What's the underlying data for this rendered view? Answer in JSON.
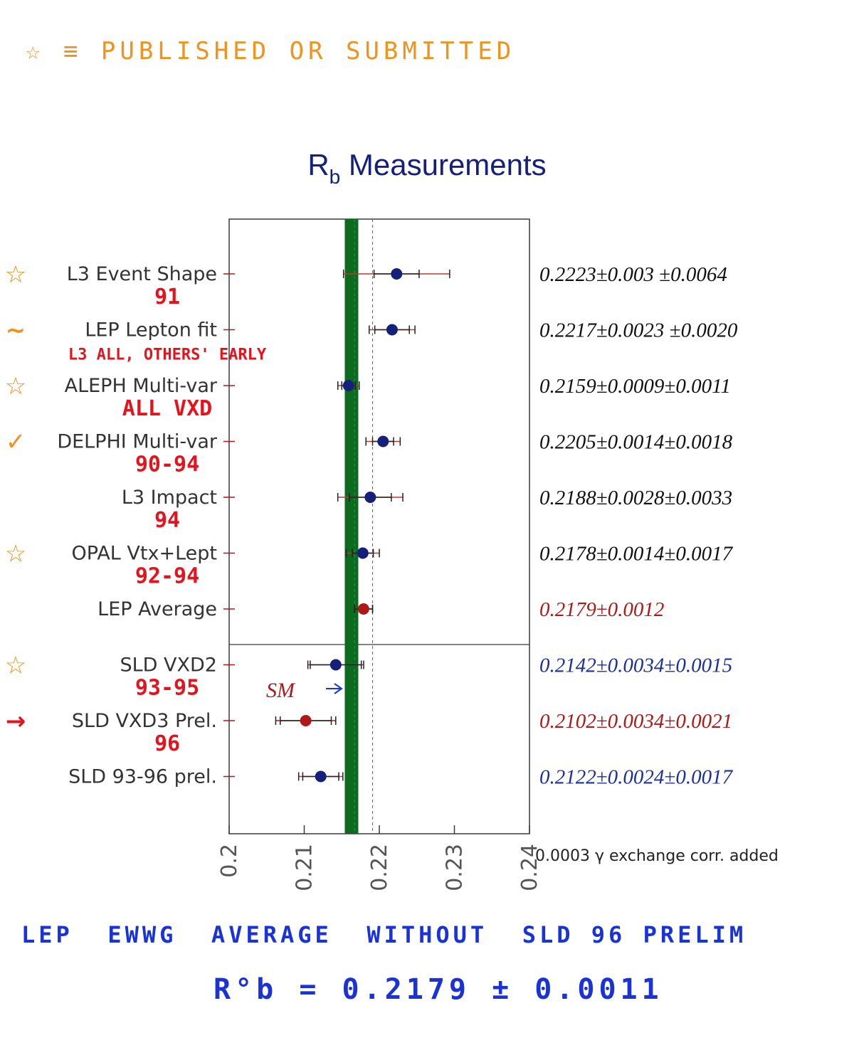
{
  "annotations": {
    "legend_note": "☆ ≡ PUBLISHED OR SUBMITTED",
    "sm_label": "SM",
    "bottom_line1": "LEP  EWWG  AVERAGE  WITHOUT  SLD 96 PRELIM",
    "bottom_line2": "R°b = 0.2179 ± 0.0011",
    "footnote": "0.0003 γ exchange corr. added"
  },
  "colors": {
    "title": "#14207a",
    "band": "#0d6b1f",
    "lep_point": "#14207a",
    "average_point": "#b01818",
    "sld_point": "#14207a",
    "handwriting_red": "#e6121c",
    "handwriting_orange": "#f0921c",
    "handwriting_blue": "#1a33d8"
  },
  "chart_data": {
    "type": "scatter",
    "title": "Rb Measurements",
    "title_main": "R",
    "title_sub": "b",
    "title_rest": " Measurements",
    "xlim": [
      0.2,
      0.24
    ],
    "xticks": [
      "0.2",
      "0.21",
      "0.22",
      "0.23",
      "0.24"
    ],
    "xtick_values": [
      0.2,
      0.21,
      0.22,
      0.23,
      0.24
    ],
    "band": {
      "value": 0.2163,
      "halfwidth": 0.0009,
      "label": "SM"
    },
    "grid": false,
    "legend": "none",
    "series": [
      {
        "label": "L3 Event Shape",
        "value": 0.2223,
        "stat": 0.003,
        "syst": 0.0064,
        "text": "0.2223±0.003  ±0.0064",
        "text_color": "#111111",
        "marker": "#14207a",
        "note": "91",
        "mark": "star"
      },
      {
        "label": "LEP Lepton fit",
        "value": 0.2217,
        "stat": 0.0023,
        "syst": 0.002,
        "text": "0.2217±0.0023 ±0.0020",
        "text_color": "#111111",
        "marker": "#14207a",
        "note": "L3 ALL, OTHERS' EARLY",
        "mark": "tilde"
      },
      {
        "label": "ALEPH Multi-var",
        "value": 0.2159,
        "stat": 0.0009,
        "syst": 0.0011,
        "text": "0.2159±0.0009±0.0011",
        "text_color": "#111111",
        "marker": "#14207a",
        "note": "ALL VXD",
        "mark": "star"
      },
      {
        "label": "DELPHI Multi-var",
        "value": 0.2205,
        "stat": 0.0014,
        "syst": 0.0018,
        "text": "0.2205±0.0014±0.0018",
        "text_color": "#111111",
        "marker": "#14207a",
        "note": "90-94",
        "mark": "check"
      },
      {
        "label": "L3 Impact",
        "value": 0.2188,
        "stat": 0.0028,
        "syst": 0.0033,
        "text": "0.2188±0.0028±0.0033",
        "text_color": "#111111",
        "marker": "#14207a",
        "note": "94",
        "mark": ""
      },
      {
        "label": "OPAL Vtx+Lept",
        "value": 0.2178,
        "stat": 0.0014,
        "syst": 0.0017,
        "text": "0.2178±0.0014±0.0017",
        "text_color": "#111111",
        "marker": "#14207a",
        "note": "92-94",
        "mark": "star"
      },
      {
        "label": "LEP Average",
        "value": 0.2179,
        "stat": 0.0012,
        "syst": 0,
        "text": "0.2179±0.0012",
        "text_color": "#b01818",
        "marker": "#b01818",
        "note": "",
        "mark": ""
      },
      {
        "label": "SLD VXD2",
        "value": 0.2142,
        "stat": 0.0034,
        "syst": 0.0015,
        "text": "0.2142±0.0034±0.0015",
        "text_color": "#1a2fa0",
        "marker": "#14207a",
        "note": "93-95",
        "mark": "star"
      },
      {
        "label": "SLD VXD3 Prel.",
        "value": 0.2102,
        "stat": 0.0034,
        "syst": 0.0021,
        "text": "0.2102±0.0034±0.0021",
        "text_color": "#b01818",
        "marker": "#b01818",
        "note": "96",
        "mark": "arrow"
      },
      {
        "label": "SLD 93-96 prel.",
        "value": 0.2122,
        "stat": 0.0024,
        "syst": 0.0017,
        "text": "0.2122±0.0024±0.0017",
        "text_color": "#1a2fa0",
        "marker": "#14207a",
        "note": "",
        "mark": ""
      }
    ]
  }
}
